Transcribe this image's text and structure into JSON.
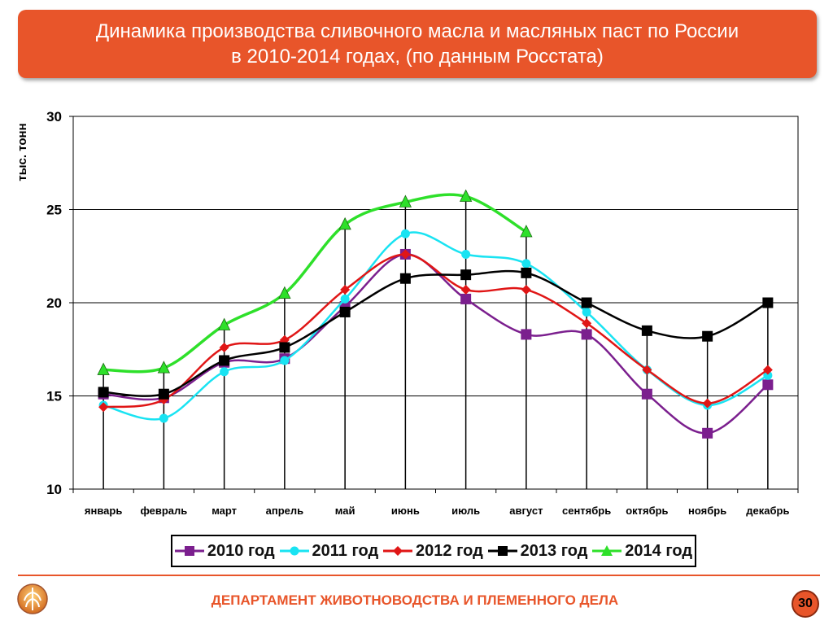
{
  "header": {
    "title_line1": "Динамика производства сливочного масла и масляных паст по России",
    "title_line2": "в 2010-2014 годах, (по данным Росстата)"
  },
  "chart_data": {
    "type": "line",
    "ylabel": "тыс. тонн",
    "ylim": [
      10,
      30
    ],
    "yticks": [
      "10",
      "15",
      "20",
      "25",
      "30"
    ],
    "grid": "horizontal",
    "legend_position": "bottom",
    "categories": [
      "январь",
      "февраль",
      "март",
      "апрель",
      "май",
      "июнь",
      "июль",
      "август",
      "сентябрь",
      "октябрь",
      "ноябрь",
      "декабрь"
    ],
    "series": [
      {
        "name": "2010 год",
        "color": "#7b1f8e",
        "marker": "square",
        "values": [
          15.1,
          14.9,
          16.8,
          17.0,
          19.8,
          22.6,
          20.2,
          18.3,
          18.3,
          15.1,
          13.0,
          15.6
        ]
      },
      {
        "name": "2011 год",
        "color": "#19e3f2",
        "marker": "circle",
        "values": [
          14.5,
          13.8,
          16.3,
          16.9,
          20.2,
          23.7,
          22.6,
          22.1,
          19.5,
          16.4,
          14.5,
          16.1
        ]
      },
      {
        "name": "2012 год",
        "color": "#e01616",
        "marker": "diamond",
        "values": [
          14.4,
          14.8,
          17.6,
          18.0,
          20.7,
          22.6,
          20.7,
          20.7,
          18.9,
          16.4,
          14.6,
          16.4
        ]
      },
      {
        "name": "2013 год",
        "color": "#000000",
        "marker": "square",
        "values": [
          15.2,
          15.1,
          16.9,
          17.6,
          19.5,
          21.3,
          21.5,
          21.6,
          20.0,
          18.5,
          18.2,
          20.0
        ]
      },
      {
        "name": "2014 год",
        "color": "#2ee02a",
        "marker": "triangle",
        "values": [
          16.4,
          16.5,
          18.8,
          20.5,
          24.2,
          25.4,
          25.7,
          23.8,
          null,
          null,
          null,
          null
        ]
      }
    ]
  },
  "footer": {
    "department": "ДЕПАРТАМЕНТ ЖИВОТНОВОДСТВА И ПЛЕМЕННОГО ДЕЛА",
    "page_number": "30"
  }
}
